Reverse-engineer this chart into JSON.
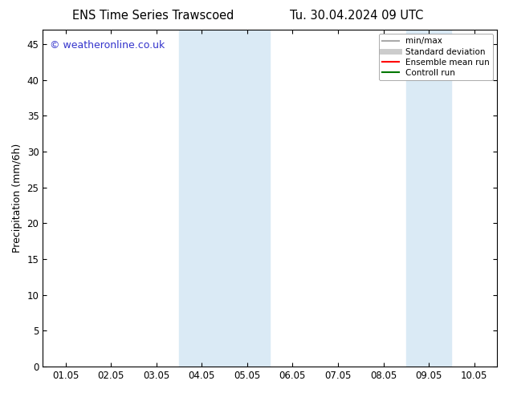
{
  "title_left": "ENS Time Series Trawscoed",
  "title_right": "Tu. 30.04.2024 09 UTC",
  "ylabel": "Precipitation (mm/6h)",
  "ylim": [
    0,
    47
  ],
  "yticks": [
    0,
    5,
    10,
    15,
    20,
    25,
    30,
    35,
    40,
    45
  ],
  "xtick_labels": [
    "01.05",
    "02.05",
    "03.05",
    "04.05",
    "05.05",
    "06.05",
    "07.05",
    "08.05",
    "09.05",
    "10.05"
  ],
  "shaded_regions": [
    {
      "xmin": 3.0,
      "xmax": 4.0,
      "color": "#daeaf5"
    },
    {
      "xmin": 4.0,
      "xmax": 5.0,
      "color": "#daeaf5"
    },
    {
      "xmin": 8.0,
      "xmax": 9.0,
      "color": "#daeaf5"
    }
  ],
  "watermark_text": "© weatheronline.co.uk",
  "watermark_color": "#3333cc",
  "watermark_fontsize": 9,
  "legend_items": [
    {
      "label": "min/max",
      "color": "#aaaaaa",
      "lw": 1.5
    },
    {
      "label": "Standard deviation",
      "color": "#cccccc",
      "lw": 5
    },
    {
      "label": "Ensemble mean run",
      "color": "#ff0000",
      "lw": 1.5
    },
    {
      "label": "Controll run",
      "color": "#007700",
      "lw": 1.5
    }
  ],
  "bg_color": "#ffffff",
  "tick_fontsize": 8.5,
  "label_fontsize": 9,
  "title_fontsize": 10.5
}
